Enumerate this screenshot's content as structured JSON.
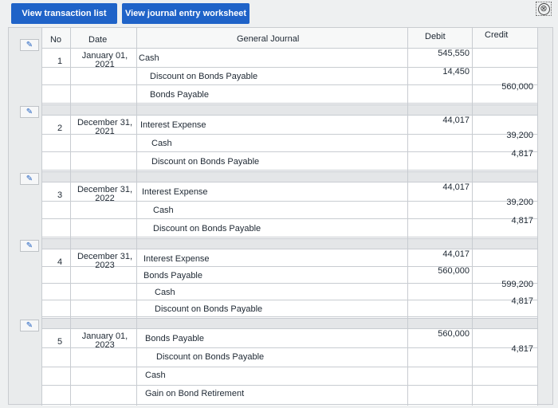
{
  "toolbar": {
    "transaction_list_label": "View transaction list",
    "journal_worksheet_label": "View journal entry worksheet",
    "close_symbol": "⊗"
  },
  "table": {
    "headers": {
      "no": "No",
      "date": "Date",
      "journal": "General Journal",
      "debit": "Debit",
      "credit": "Credit"
    },
    "entries": [
      {
        "no": "1",
        "date": [
          "January 01,",
          "2021"
        ],
        "lines": [
          {
            "account": "Cash",
            "debit": "545,550",
            "credit": ""
          },
          {
            "account": "Discount on Bonds Payable",
            "debit": "14,450",
            "credit": ""
          },
          {
            "account": "Bonds Payable",
            "debit": "",
            "credit": "560,000"
          }
        ]
      },
      {
        "no": "2",
        "date": [
          "December 31,",
          "2021"
        ],
        "lines": [
          {
            "account": "Interest Expense",
            "debit": "44,017",
            "credit": ""
          },
          {
            "account": "Cash",
            "debit": "",
            "credit": "39,200"
          },
          {
            "account": "Discount on Bonds Payable",
            "debit": "",
            "credit": "4,817"
          }
        ]
      },
      {
        "no": "3",
        "date": [
          "December 31,",
          "2022"
        ],
        "lines": [
          {
            "account": "Interest Expense",
            "debit": "44,017",
            "credit": ""
          },
          {
            "account": "Cash",
            "debit": "",
            "credit": "39,200"
          },
          {
            "account": "Discount on Bonds Payable",
            "debit": "",
            "credit": "4,817"
          }
        ]
      },
      {
        "no": "4",
        "date": [
          "December 31,",
          "2023"
        ],
        "lines": [
          {
            "account": "Interest Expense",
            "debit": "44,017",
            "credit": ""
          },
          {
            "account": "Bonds Payable",
            "debit": "560,000",
            "credit": ""
          },
          {
            "account": "Cash",
            "debit": "",
            "credit": "599,200"
          },
          {
            "account": "Discount on Bonds Payable",
            "debit": "",
            "credit": "4,817"
          }
        ]
      },
      {
        "no": "5",
        "date": [
          "January 01,",
          "2023"
        ],
        "lines": [
          {
            "account": "Bonds Payable",
            "debit": "560,000",
            "credit": ""
          },
          {
            "account": "Discount on Bonds Payable",
            "debit": "",
            "credit": "4,817"
          },
          {
            "account": "Cash",
            "debit": "",
            "credit": ""
          },
          {
            "account": "Gain on Bond Retirement",
            "debit": "",
            "credit": ""
          }
        ]
      }
    ]
  }
}
